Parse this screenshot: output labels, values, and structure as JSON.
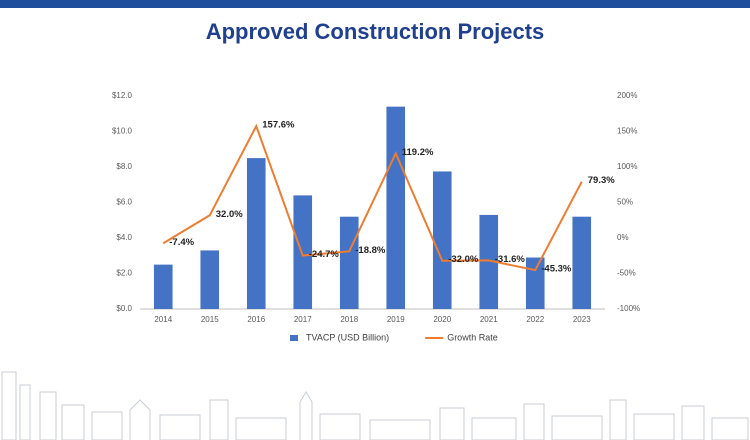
{
  "chart_data": {
    "type": "bar",
    "title": "Approved Construction Projects",
    "categories": [
      "2014",
      "2015",
      "2016",
      "2017",
      "2018",
      "2019",
      "2020",
      "2021",
      "2022",
      "2023"
    ],
    "series": [
      {
        "name": "TVACP (USD Billion)",
        "type": "bar",
        "color": "#4472c4",
        "values": [
          2.5,
          3.3,
          8.5,
          6.4,
          5.2,
          11.4,
          7.75,
          5.3,
          2.9,
          5.2
        ]
      },
      {
        "name": "Growth Rate",
        "type": "line",
        "color": "#ed7d31",
        "axis": "y2",
        "values": [
          -7.4,
          32.0,
          157.6,
          -24.7,
          -18.8,
          119.2,
          -32.0,
          -31.6,
          -45.3,
          79.3
        ],
        "value_labels": [
          "-7.4%",
          "32.0%",
          "157.6%",
          "-24.7%",
          "-18.8%",
          "119.2%",
          "-32.0%",
          "-31.6%",
          "-45.3%",
          "79.3%"
        ]
      }
    ],
    "ylim": [
      0,
      12
    ],
    "yticks": [
      {
        "value": 0,
        "label": "$0.0"
      },
      {
        "value": 2,
        "label": "$2.0"
      },
      {
        "value": 4,
        "label": "$4.0"
      },
      {
        "value": 6,
        "label": "$6.0"
      },
      {
        "value": 8,
        "label": "$8.0"
      },
      {
        "value": 10,
        "label": "$10.0"
      },
      {
        "value": 12,
        "label": "$12.0"
      }
    ],
    "y2lim": [
      -100,
      200
    ],
    "y2ticks": [
      {
        "value": -100,
        "label": "-100%"
      },
      {
        "value": -50,
        "label": "-50%"
      },
      {
        "value": 0,
        "label": "0%"
      },
      {
        "value": 50,
        "label": "50%"
      },
      {
        "value": 100,
        "label": "100%"
      },
      {
        "value": 150,
        "label": "150%"
      },
      {
        "value": 200,
        "label": "200%"
      }
    ],
    "grid": false,
    "legend": "bottom"
  }
}
